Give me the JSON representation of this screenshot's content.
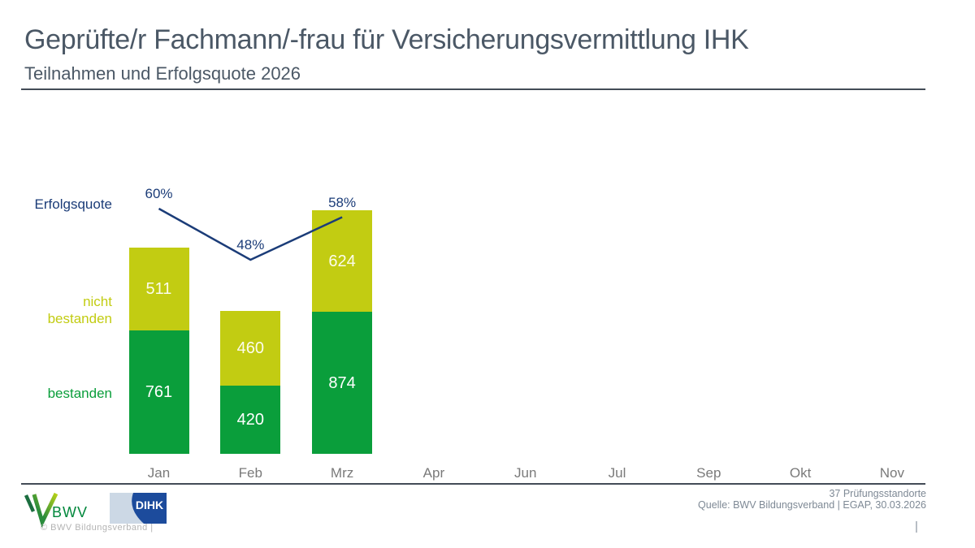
{
  "header": {
    "title": "Geprüfte/r Fachmann/-frau für Versicherungsvermittlung IHK",
    "subtitle": "Teilnahmen und Erfolgsquote 2026"
  },
  "chart_data": {
    "type": "bar",
    "subtype": "stacked-bars-with-success-rate-line",
    "title": "Teilnahmen und Erfolgsquote 2026",
    "categories": [
      "Jan",
      "Feb",
      "Mrz",
      "Apr",
      "Jun",
      "Jul",
      "Sep",
      "Okt",
      "Nov"
    ],
    "series": [
      {
        "name": "bestanden",
        "color": "#0a9e3b",
        "label_color": "#ffffff",
        "values": [
          761,
          420,
          874,
          null,
          null,
          null,
          null,
          null,
          null
        ]
      },
      {
        "name": "nicht bestanden",
        "color": "#c2cc12",
        "label_color": "#fcfcec",
        "values": [
          511,
          460,
          624,
          null,
          null,
          null,
          null,
          null,
          null
        ]
      }
    ],
    "line_series": {
      "name": "Erfolgsquote",
      "color": "#1b3c78",
      "unit": "%",
      "values": [
        60,
        48,
        58,
        null,
        null,
        null,
        null,
        null,
        null
      ]
    },
    "totals": [
      1272,
      880,
      1498
    ],
    "legend_position": "left",
    "grid": false,
    "axes_visible": false
  },
  "labels": {
    "erfolgsquote": "Erfolgsquote",
    "nicht_bestanden": "nicht bestanden",
    "bestanden": "bestanden"
  },
  "footer": {
    "standorte": "37 Prüfungsstandorte",
    "quelle": "Quelle: BWV Bildungsverband | EGAP, 30.03.2026",
    "copyright": "©  BWV Bildungsverband  |",
    "page_marker": "|"
  },
  "logos": {
    "bwv_text": "BWV",
    "dihk_text": "DIHK"
  },
  "colors": {
    "title": "#4b5866",
    "line": "#1b3c78",
    "green": "#0a9e3b",
    "yellow_green": "#c2cc12",
    "month_label": "#7a7a7a",
    "footnote": "#7e8995",
    "copyright": "#b3b3b3",
    "divider": "#434c57",
    "dihk_blue": "#1c4b9c",
    "dihk_light": "#ccd8e5",
    "bwv_dark_green": "#1b6e3f",
    "bwv_green": "#2a8c3c",
    "bwv_lime": "#b7d118"
  }
}
